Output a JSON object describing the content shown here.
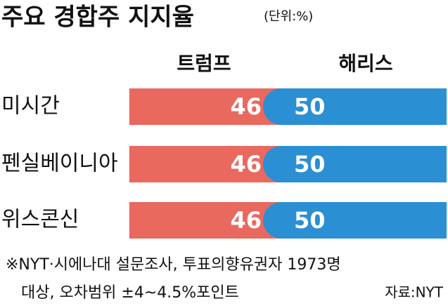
{
  "chart_data": {
    "type": "diverging-bar",
    "title": "주요 경합주 지지율",
    "subtitle": "(단위:%)",
    "categories": [
      "미시간",
      "펜실베이니아",
      "위스콘신"
    ],
    "series": [
      {
        "name": "트럼프",
        "color": "#e9695f",
        "values": [
          46,
          46,
          46
        ]
      },
      {
        "name": "해리스",
        "color": "#2b8fd4",
        "values": [
          50,
          50,
          50
        ]
      }
    ],
    "notes": [
      "※NYT·시에나대 설문조사, 투표의향유권자 1973명",
      "대상, 오차범위 ±4~4.5%포인트"
    ],
    "source": "자료:NYT"
  }
}
